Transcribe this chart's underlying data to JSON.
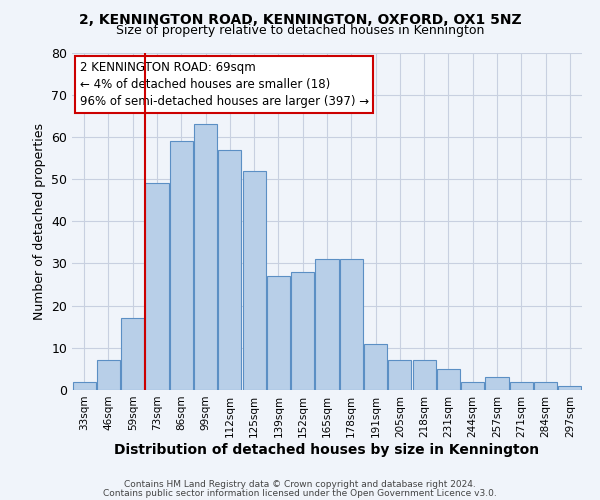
{
  "title1": "2, KENNINGTON ROAD, KENNINGTON, OXFORD, OX1 5NZ",
  "title2": "Size of property relative to detached houses in Kennington",
  "xlabel": "Distribution of detached houses by size in Kennington",
  "ylabel": "Number of detached properties",
  "categories": [
    "33sqm",
    "46sqm",
    "59sqm",
    "73sqm",
    "86sqm",
    "99sqm",
    "112sqm",
    "125sqm",
    "139sqm",
    "152sqm",
    "165sqm",
    "178sqm",
    "191sqm",
    "205sqm",
    "218sqm",
    "231sqm",
    "244sqm",
    "257sqm",
    "271sqm",
    "284sqm",
    "297sqm"
  ],
  "values": [
    2,
    7,
    17,
    49,
    59,
    63,
    57,
    52,
    27,
    28,
    31,
    31,
    11,
    7,
    7,
    5,
    2,
    3,
    2,
    2,
    1
  ],
  "bar_color": "#b8cfe8",
  "bar_edge_color": "#5b8fc4",
  "grid_color": "#c8d0e0",
  "vline_x_index": 3,
  "vline_color": "#cc0000",
  "annotation_text": "2 KENNINGTON ROAD: 69sqm\n← 4% of detached houses are smaller (18)\n96% of semi-detached houses are larger (397) →",
  "annotation_box_color": "#ffffff",
  "annotation_box_edge": "#cc0000",
  "ylim": [
    0,
    80
  ],
  "yticks": [
    0,
    10,
    20,
    30,
    40,
    50,
    60,
    70,
    80
  ],
  "footer1": "Contains HM Land Registry data © Crown copyright and database right 2024.",
  "footer2": "Contains public sector information licensed under the Open Government Licence v3.0.",
  "bg_color": "#f0f4fa"
}
